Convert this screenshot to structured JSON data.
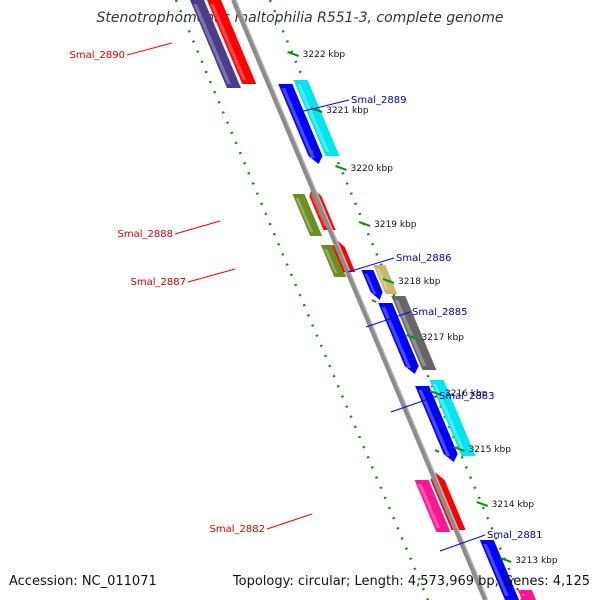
{
  "title": "Stenotrophomonas maltophilia R551-3, complete genome",
  "accession_text": "Accession: NC_011071",
  "summary_text": "Topology: circular; Length: 4,573,969 bp; Genes: 4,125",
  "colors": {
    "backbone": "#8c8c8c",
    "dots": "#1a8a1a",
    "tick": "#1a8a1a",
    "label_left": "#cc0000",
    "label_right": "#0000aa",
    "leader_left": "#ff0000",
    "leader_right": "#0000ff"
  },
  "kbp_ticks": [
    {
      "label": "3222 kbp"
    },
    {
      "label": "3221 kbp"
    },
    {
      "label": "3220 kbp"
    },
    {
      "label": "3219 kbp"
    },
    {
      "label": "3218 kbp"
    },
    {
      "label": "3217 kbp"
    },
    {
      "label": "3216 kbp"
    },
    {
      "label": "3215 kbp"
    },
    {
      "label": "3214 kbp"
    },
    {
      "label": "3213 kbp"
    }
  ],
  "gene_labels": [
    {
      "text": "Smal_2890",
      "side": "left"
    },
    {
      "text": "Smal_2889",
      "side": "right"
    },
    {
      "text": "Smal_2888",
      "side": "left"
    },
    {
      "text": "Smal_2887",
      "side": "left"
    },
    {
      "text": "Smal_2886",
      "side": "right"
    },
    {
      "text": "Smal_2885",
      "side": "right"
    },
    {
      "text": "Smal_2883",
      "side": "right"
    },
    {
      "text": "Smal_2882",
      "side": "left"
    },
    {
      "text": "Smal_2881",
      "side": "right"
    }
  ]
}
